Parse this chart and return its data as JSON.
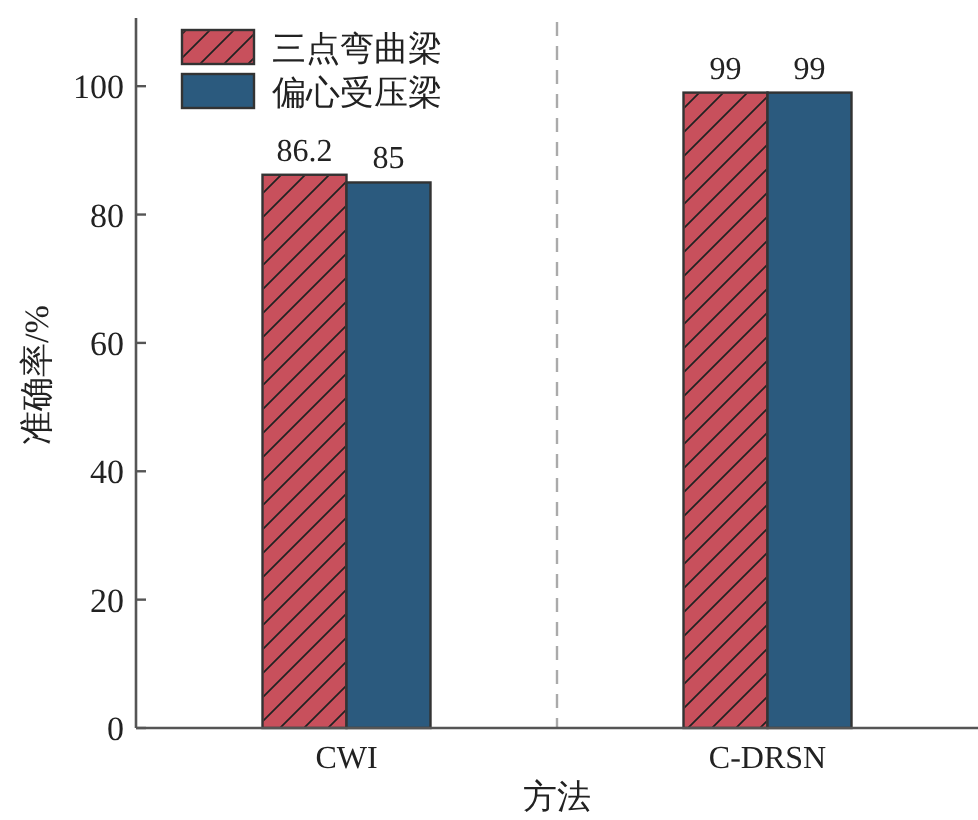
{
  "chart_data": {
    "type": "bar",
    "xlabel": "方法",
    "ylabel": "准确率/%",
    "categories": [
      "CWI",
      "C-DRSN"
    ],
    "series": [
      {
        "name": "三点弯曲梁",
        "color": "#c8505c",
        "values": [
          86.2,
          99
        ]
      },
      {
        "name": "偏心受压梁",
        "color": "#2b5a7e",
        "values": [
          85,
          99
        ]
      }
    ],
    "ylim": [
      0,
      110
    ],
    "yticks": [
      0,
      20,
      40,
      60,
      80,
      100
    ],
    "data_labels": true,
    "legend": "top left",
    "grid": false
  }
}
